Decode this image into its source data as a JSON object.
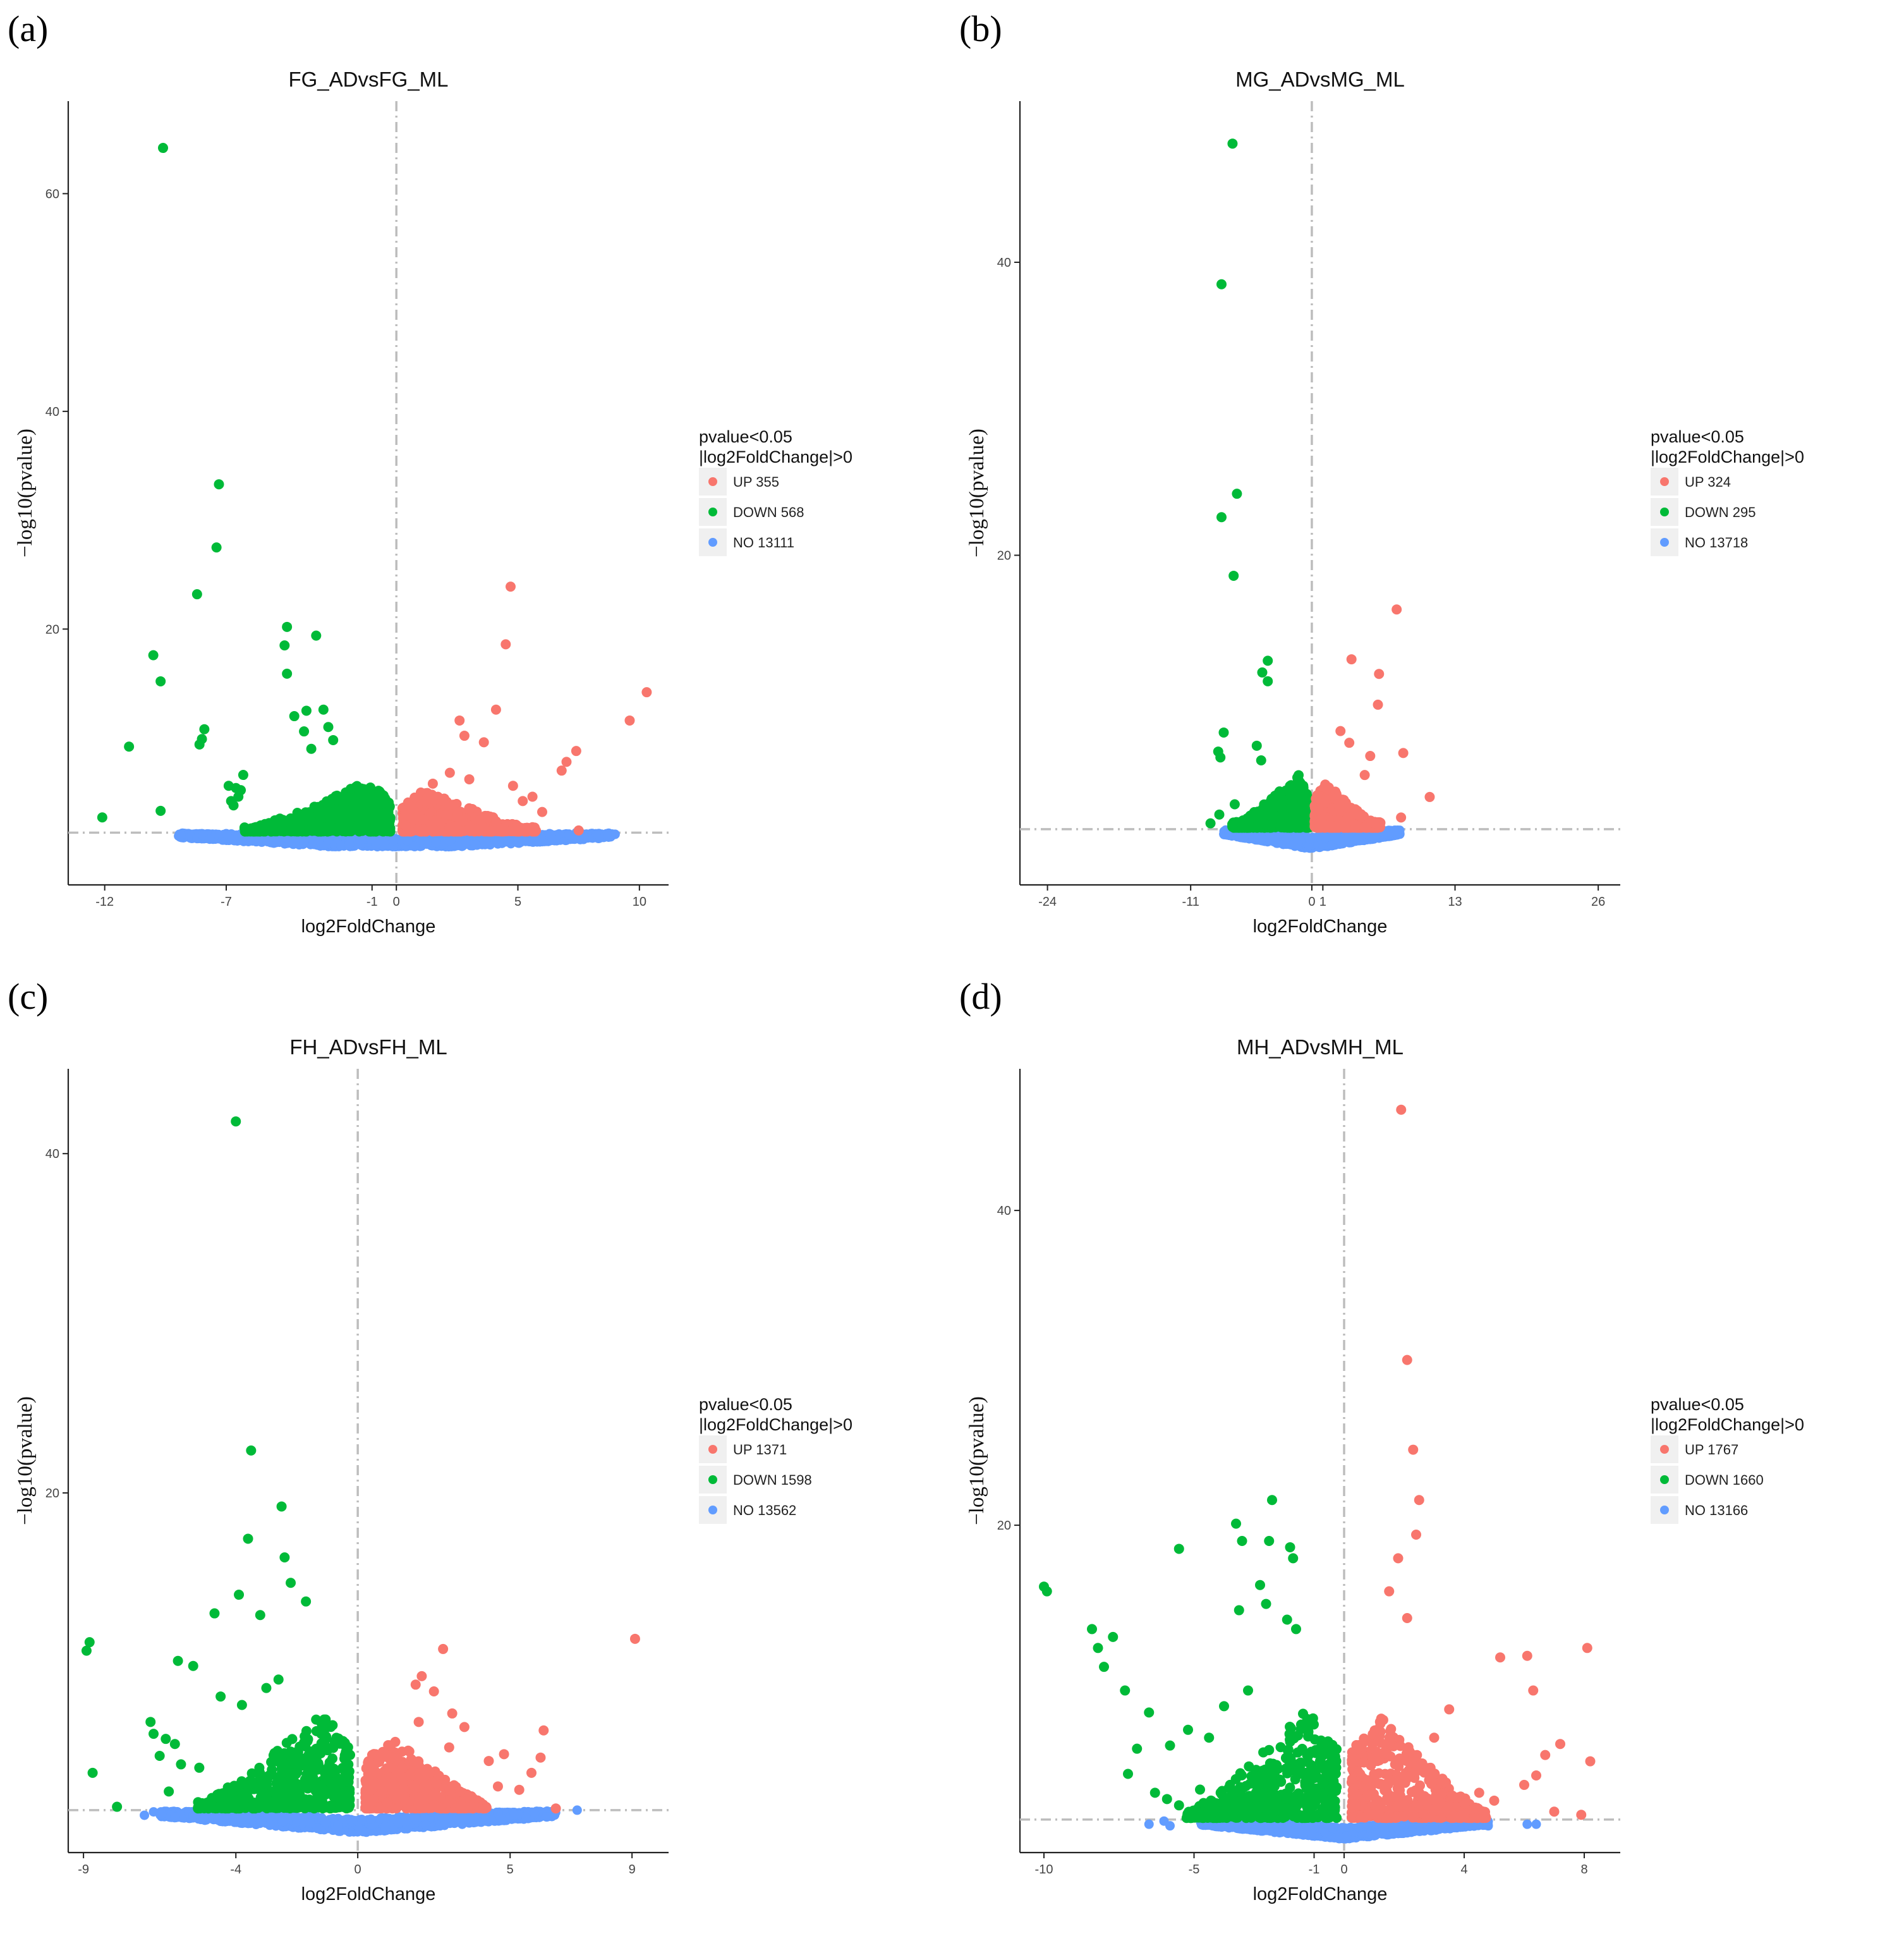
{
  "chart_data": [
    {
      "type": "scatter",
      "panel_label": "(a)",
      "title": "FG_ADvsFG_ML",
      "xlabel": "log2FoldChange",
      "ylabel": "−log10(pvalue)",
      "xlim": [
        -13.5,
        11.2
      ],
      "ylim": [
        -3.5,
        68.5
      ],
      "x_ticks": [
        -12,
        -7,
        -1,
        0,
        5,
        10
      ],
      "y_ticks": [
        20,
        40,
        60
      ],
      "vline": 0,
      "hline": 1.3,
      "legend": {
        "title_lines": [
          "pvalue<0.05",
          "|log2FoldChange|>0"
        ],
        "entries": [
          {
            "label": "UP 355",
            "color": "#F8766D"
          },
          {
            "label": "DOWN 568",
            "color": "#00BA38"
          },
          {
            "label": "NO 13111",
            "color": "#619CFF"
          }
        ]
      },
      "series": [
        {
          "name": "UP",
          "color": "#F8766D",
          "up_bound": 5,
          "x_reach": 5.5,
          "dense_y": 5,
          "points": [
            [
              4.7,
              23.9
            ],
            [
              10.3,
              14.2
            ],
            [
              4.5,
              18.6
            ],
            [
              4.1,
              12.6
            ],
            [
              9.6,
              11.6
            ],
            [
              2.6,
              11.6
            ],
            [
              3.6,
              9.6
            ],
            [
              2.8,
              10.2
            ],
            [
              7.4,
              8.8
            ],
            [
              7.0,
              7.8
            ],
            [
              6.8,
              7.0
            ],
            [
              2.2,
              6.8
            ],
            [
              3.0,
              6.2
            ],
            [
              1.5,
              5.8
            ],
            [
              4.8,
              5.6
            ],
            [
              5.2,
              4.2
            ],
            [
              5.6,
              4.6
            ],
            [
              6.0,
              3.2
            ],
            [
              7.5,
              1.5
            ]
          ]
        },
        {
          "name": "DOWN",
          "color": "#00BA38",
          "up_bound": 5,
          "x_reach": 6,
          "dense_y": 6,
          "points": [
            [
              -9.6,
              64.2
            ],
            [
              -7.3,
              33.3
            ],
            [
              -7.4,
              27.5
            ],
            [
              -8.2,
              23.2
            ],
            [
              -10.0,
              17.6
            ],
            [
              -9.7,
              15.2
            ],
            [
              -4.5,
              20.2
            ],
            [
              -4.6,
              18.5
            ],
            [
              -3.3,
              19.4
            ],
            [
              -4.5,
              15.9
            ],
            [
              -11.0,
              9.2
            ],
            [
              -7.9,
              10.8
            ],
            [
              -8.0,
              9.9
            ],
            [
              -8.1,
              9.4
            ],
            [
              -12.1,
              2.7
            ],
            [
              -9.7,
              3.3
            ],
            [
              -6.9,
              5.6
            ],
            [
              -6.6,
              5.4
            ],
            [
              -6.4,
              5.2
            ],
            [
              -6.5,
              4.6
            ],
            [
              -6.8,
              4.2
            ],
            [
              -6.7,
              3.8
            ],
            [
              -6.3,
              6.6
            ],
            [
              -4.2,
              12.0
            ],
            [
              -3.7,
              12.5
            ],
            [
              -3.8,
              10.6
            ],
            [
              -3.0,
              12.6
            ],
            [
              -2.8,
              11.0
            ],
            [
              -2.6,
              9.8
            ],
            [
              -3.5,
              9.0
            ]
          ]
        },
        {
          "name": "NO",
          "color": "#619CFF",
          "cloud_half_width": 9,
          "cloud_depth": 1.6,
          "points": [
            [
              -6.5,
              1.0
            ],
            [
              -6.0,
              0.9
            ],
            [
              -5.7,
              1.1
            ],
            [
              -7.0,
              1.2
            ],
            [
              5.6,
              1.0
            ],
            [
              6.3,
              1.2
            ],
            [
              7.1,
              1.1
            ],
            [
              7.4,
              1.3
            ],
            [
              5.0,
              0.9
            ]
          ]
        }
      ]
    },
    {
      "type": "scatter",
      "panel_label": "(b)",
      "title": "MG_ADvsMG_ML",
      "xlabel": "log2FoldChange",
      "ylabel": "−log10(pvalue)",
      "xlim": [
        -26.5,
        28
      ],
      "ylim": [
        -2.5,
        51
      ],
      "x_ticks": [
        -24,
        -11,
        0,
        1,
        13,
        26
      ],
      "y_ticks": [
        20,
        40
      ],
      "vline": 0,
      "hline": 1.3,
      "legend": {
        "title_lines": [
          "pvalue<0.05",
          "|log2FoldChange|>0"
        ],
        "entries": [
          {
            "label": "UP 324",
            "color": "#F8766D"
          },
          {
            "label": "DOWN 295",
            "color": "#00BA38"
          },
          {
            "label": "NO 13718",
            "color": "#619CFF"
          }
        ]
      },
      "series": [
        {
          "name": "UP",
          "color": "#F8766D",
          "up_bound": 3,
          "x_reach": 6,
          "dense_y": 4,
          "points": [
            [
              7.7,
              16.3
            ],
            [
              3.6,
              12.9
            ],
            [
              6.1,
              11.9
            ],
            [
              6.0,
              9.8
            ],
            [
              2.6,
              8.0
            ],
            [
              8.3,
              6.5
            ],
            [
              5.3,
              6.3
            ],
            [
              10.7,
              3.5
            ],
            [
              8.1,
              2.1
            ],
            [
              4.8,
              5.0
            ],
            [
              3.4,
              7.2
            ]
          ]
        },
        {
          "name": "DOWN",
          "color": "#00BA38",
          "up_bound": 3,
          "x_reach": 7,
          "dense_y": 4.5,
          "points": [
            [
              -7.2,
              48.1
            ],
            [
              -8.2,
              38.5
            ],
            [
              -6.8,
              24.2
            ],
            [
              -8.2,
              22.6
            ],
            [
              -7.1,
              18.6
            ],
            [
              -4.0,
              12.8
            ],
            [
              -4.5,
              12.0
            ],
            [
              -4.0,
              11.4
            ],
            [
              -8.0,
              7.9
            ],
            [
              -8.5,
              6.6
            ],
            [
              -8.3,
              6.2
            ],
            [
              -9.2,
              1.7
            ],
            [
              -8.4,
              2.3
            ],
            [
              -7.0,
              3.0
            ],
            [
              -5.0,
              7.0
            ],
            [
              -4.6,
              6.0
            ]
          ]
        },
        {
          "name": "NO",
          "color": "#619CFF",
          "cloud_half_width": 8,
          "cloud_depth": 1.3,
          "points": [
            [
              -7.2,
              1.0
            ],
            [
              -6.5,
              0.8
            ],
            [
              7.0,
              1.0
            ],
            [
              7.6,
              1.2
            ],
            [
              -5.5,
              1.2
            ],
            [
              5.8,
              0.9
            ]
          ]
        }
      ]
    },
    {
      "type": "scatter",
      "panel_label": "(c)",
      "title": "FH_ADvsFH_ML",
      "xlabel": "log2FoldChange",
      "ylabel": "−log10(pvalue)",
      "xlim": [
        -9.5,
        10.2
      ],
      "ylim": [
        -1.2,
        45
      ],
      "x_ticks": [
        -9,
        -4,
        0,
        5,
        9
      ],
      "y_ticks": [
        20,
        40
      ],
      "vline": 0,
      "hline": 1.3,
      "legend": {
        "title_lines": [
          "pvalue<0.05",
          "|log2FoldChange|>0"
        ],
        "entries": [
          {
            "label": "UP 1371",
            "color": "#F8766D"
          },
          {
            "label": "DOWN 1598",
            "color": "#00BA38"
          },
          {
            "label": "NO 13562",
            "color": "#619CFF"
          }
        ]
      },
      "series": [
        {
          "name": "UP",
          "color": "#F8766D",
          "up_bound": 3,
          "x_reach": 4,
          "dense_y": 6,
          "points": [
            [
              9.1,
              11.4
            ],
            [
              2.8,
              10.8
            ],
            [
              2.1,
              9.2
            ],
            [
              1.9,
              8.7
            ],
            [
              2.5,
              8.3
            ],
            [
              3.1,
              7.0
            ],
            [
              3.5,
              6.2
            ],
            [
              6.1,
              6.0
            ],
            [
              4.3,
              4.2
            ],
            [
              4.8,
              4.6
            ],
            [
              6.0,
              4.4
            ],
            [
              5.7,
              3.5
            ],
            [
              4.6,
              2.7
            ],
            [
              5.3,
              2.5
            ],
            [
              6.5,
              1.4
            ],
            [
              3.0,
              5.0
            ],
            [
              2.0,
              6.5
            ]
          ]
        },
        {
          "name": "DOWN",
          "color": "#00BA38",
          "up_bound": 3,
          "x_reach": 5,
          "dense_y": 7.5,
          "points": [
            [
              -4.0,
              41.9
            ],
            [
              -3.5,
              22.5
            ],
            [
              -2.5,
              19.2
            ],
            [
              -3.6,
              17.3
            ],
            [
              -2.4,
              16.2
            ],
            [
              -2.2,
              14.7
            ],
            [
              -3.9,
              14.0
            ],
            [
              -1.7,
              13.6
            ],
            [
              -4.7,
              12.9
            ],
            [
              -3.2,
              12.8
            ],
            [
              -8.8,
              11.2
            ],
            [
              -8.9,
              10.7
            ],
            [
              -5.9,
              10.1
            ],
            [
              -5.4,
              9.8
            ],
            [
              -8.7,
              3.5
            ],
            [
              -7.9,
              1.5
            ],
            [
              -6.8,
              6.5
            ],
            [
              -6.7,
              5.8
            ],
            [
              -6.3,
              5.5
            ],
            [
              -6.0,
              5.2
            ],
            [
              -6.5,
              4.5
            ],
            [
              -5.8,
              4.0
            ],
            [
              -4.5,
              8.0
            ],
            [
              -3.8,
              7.5
            ],
            [
              -3.0,
              8.5
            ],
            [
              -2.6,
              9.0
            ],
            [
              -6.2,
              2.4
            ],
            [
              -5.2,
              3.8
            ]
          ]
        },
        {
          "name": "NO",
          "color": "#619CFF",
          "cloud_half_width": 6.5,
          "cloud_depth": 1.3,
          "points": [
            [
              -6.7,
              1.2
            ],
            [
              -6.0,
              0.9
            ],
            [
              -5.4,
              1.0
            ],
            [
              5.8,
              1.1
            ],
            [
              6.2,
              0.9
            ],
            [
              7.2,
              1.3
            ],
            [
              -7.0,
              1.0
            ]
          ]
        }
      ]
    },
    {
      "type": "scatter",
      "panel_label": "(d)",
      "title": "MH_ADvsMH_ML",
      "xlabel": "log2FoldChange",
      "ylabel": "−log10(pvalue)",
      "xlim": [
        -10.8,
        9.2
      ],
      "ylim": [
        -0.8,
        49
      ],
      "x_ticks": [
        -10,
        -5,
        -1,
        0,
        4,
        8
      ],
      "y_ticks": [
        20,
        40
      ],
      "vline": 0,
      "hline": 1.3,
      "legend": {
        "title_lines": [
          "pvalue<0.05",
          "|log2FoldChange|>0"
        ],
        "entries": [
          {
            "label": "UP 1767",
            "color": "#F8766D"
          },
          {
            "label": "DOWN 1660",
            "color": "#00BA38"
          },
          {
            "label": "NO 13166",
            "color": "#619CFF"
          }
        ]
      },
      "series": [
        {
          "name": "UP",
          "color": "#F8766D",
          "up_bound": 2.8,
          "x_reach": 4.5,
          "dense_y": 9,
          "points": [
            [
              1.9,
              46.4
            ],
            [
              2.1,
              30.5
            ],
            [
              2.3,
              24.8
            ],
            [
              2.5,
              21.6
            ],
            [
              2.4,
              19.4
            ],
            [
              1.8,
              17.9
            ],
            [
              1.5,
              15.8
            ],
            [
              2.1,
              14.1
            ],
            [
              5.2,
              11.6
            ],
            [
              6.1,
              11.7
            ],
            [
              8.1,
              12.2
            ],
            [
              6.3,
              9.5
            ],
            [
              3.5,
              8.3
            ],
            [
              7.2,
              6.1
            ],
            [
              6.7,
              5.4
            ],
            [
              8.2,
              5.0
            ],
            [
              6.4,
              4.1
            ],
            [
              6.0,
              3.5
            ],
            [
              7.9,
              1.6
            ],
            [
              7.0,
              1.8
            ],
            [
              4.5,
              3.0
            ],
            [
              5.0,
              2.5
            ],
            [
              3.0,
              6.5
            ]
          ]
        },
        {
          "name": "DOWN",
          "color": "#00BA38",
          "up_bound": 3,
          "x_reach": 5,
          "dense_y": 9.5,
          "points": [
            [
              -10.0,
              16.1
            ],
            [
              -9.9,
              15.8
            ],
            [
              -8.4,
              13.4
            ],
            [
              -7.7,
              12.9
            ],
            [
              -8.2,
              12.2
            ],
            [
              -8.0,
              11.0
            ],
            [
              -7.3,
              9.5
            ],
            [
              -5.5,
              18.5
            ],
            [
              -3.6,
              20.1
            ],
            [
              -3.4,
              19.0
            ],
            [
              -2.4,
              21.6
            ],
            [
              -2.5,
              19.0
            ],
            [
              -1.8,
              18.6
            ],
            [
              -1.7,
              17.9
            ],
            [
              -2.8,
              16.2
            ],
            [
              -2.6,
              15.0
            ],
            [
              -3.5,
              14.6
            ],
            [
              -1.9,
              14.0
            ],
            [
              -1.6,
              13.4
            ],
            [
              -6.5,
              8.1
            ],
            [
              -5.8,
              6.0
            ],
            [
              -5.2,
              7.0
            ],
            [
              -4.5,
              6.5
            ],
            [
              -4.0,
              8.5
            ],
            [
              -3.2,
              9.5
            ],
            [
              -6.9,
              5.8
            ],
            [
              -7.2,
              4.2
            ],
            [
              -6.3,
              3.0
            ],
            [
              -5.9,
              2.6
            ],
            [
              -5.5,
              2.2
            ],
            [
              -4.8,
              3.2
            ],
            [
              -4.6,
              1.6
            ],
            [
              -4.1,
              1.8
            ],
            [
              -3.8,
              3.5
            ]
          ]
        },
        {
          "name": "NO",
          "color": "#619CFF",
          "cloud_half_width": 4.8,
          "cloud_depth": 1.2,
          "points": [
            [
              -6.5,
              1.0
            ],
            [
              -5.8,
              0.9
            ],
            [
              -4.6,
              1.2
            ],
            [
              4.4,
              1.1
            ],
            [
              4.8,
              0.9
            ],
            [
              6.1,
              1.0
            ],
            [
              6.4,
              1.0
            ],
            [
              -6.0,
              1.2
            ]
          ]
        }
      ]
    }
  ]
}
